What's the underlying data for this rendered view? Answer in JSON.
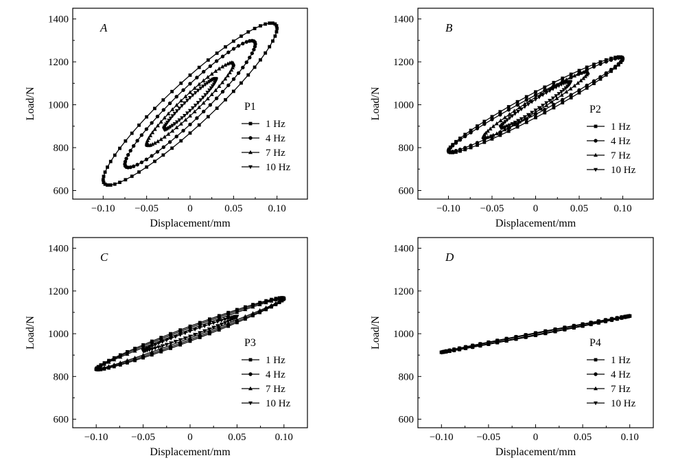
{
  "chart_data": [
    {
      "type": "line",
      "panel_label": "A",
      "specimen": "P1",
      "xlabel": "Displacement/mm",
      "ylabel": "Load/N",
      "xlim": [
        -0.135,
        0.135
      ],
      "ylim": [
        560,
        1450
      ],
      "xticks": [
        -0.1,
        -0.05,
        0,
        0.05,
        0.1
      ],
      "xtick_labels": [
        "−0.10",
        "−0.05",
        "0",
        "0.05",
        "0.10"
      ],
      "yticks": [
        600,
        800,
        1000,
        1200,
        1400
      ],
      "ytick_labels": [
        "600",
        "800",
        "1000",
        "1200",
        "1400"
      ],
      "legend_position": "middle-right",
      "series": [
        {
          "name": "1 Hz",
          "marker": "square",
          "amplitude": 0.1,
          "center_load": 1003,
          "load_amplitude": 353,
          "loop_width": 135
        },
        {
          "name": "4 Hz",
          "marker": "circle",
          "amplitude": 0.075,
          "center_load": 1003,
          "load_amplitude": 280,
          "loop_width": 95
        },
        {
          "name": "7 Hz",
          "marker": "triangle-up",
          "amplitude": 0.05,
          "center_load": 1003,
          "load_amplitude": 185,
          "loop_width": 55
        },
        {
          "name": "10 Hz",
          "marker": "triangle-down",
          "amplitude": 0.03,
          "center_load": 1003,
          "load_amplitude": 115,
          "loop_width": 30
        }
      ]
    },
    {
      "type": "line",
      "panel_label": "B",
      "specimen": "P2",
      "xlabel": "Displacement/mm",
      "ylabel": "Load/N",
      "xlim": [
        -0.135,
        0.135
      ],
      "ylim": [
        560,
        1450
      ],
      "xticks": [
        -0.1,
        -0.05,
        0,
        0.05,
        0.1
      ],
      "xtick_labels": [
        "−0.10",
        "−0.05",
        "0",
        "0.05",
        "0.10"
      ],
      "yticks": [
        600,
        800,
        1000,
        1200,
        1400
      ],
      "ytick_labels": [
        "600",
        "800",
        "1000",
        "1200",
        "1400"
      ],
      "legend_position": "middle-right",
      "series": [
        {
          "name": "1 Hz",
          "marker": "square",
          "amplitude": 0.1,
          "center_load": 1000,
          "load_amplitude": 215,
          "loop_width": 60
        },
        {
          "name": "4 Hz",
          "marker": "circle",
          "amplitude": 0.1,
          "center_load": 1000,
          "load_amplitude": 215,
          "loop_width": 45
        },
        {
          "name": "7 Hz",
          "marker": "triangle-up",
          "amplitude": 0.06,
          "center_load": 1000,
          "load_amplitude": 150,
          "loop_width": 35
        },
        {
          "name": "10 Hz",
          "marker": "triangle-down",
          "amplitude": 0.04,
          "center_load": 1000,
          "load_amplitude": 105,
          "loop_width": 25
        }
      ]
    },
    {
      "type": "line",
      "panel_label": "C",
      "specimen": "P3",
      "xlabel": "Displacement/mm",
      "ylabel": "Load/N",
      "xlim": [
        -0.125,
        0.125
      ],
      "ylim": [
        560,
        1450
      ],
      "xticks": [
        -0.1,
        -0.05,
        0,
        0.05,
        0.1
      ],
      "xtick_labels": [
        "−0.10",
        "−0.05",
        "0",
        "0.05",
        "0.10"
      ],
      "yticks": [
        600,
        800,
        1000,
        1200,
        1400
      ],
      "ytick_labels": [
        "600",
        "800",
        "1000",
        "1200",
        "1400"
      ],
      "legend_position": "lower-right",
      "series": [
        {
          "name": "1 Hz",
          "marker": "square",
          "amplitude": 0.1,
          "center_load": 1000,
          "load_amplitude": 165,
          "loop_width": 35
        },
        {
          "name": "4 Hz",
          "marker": "circle",
          "amplitude": 0.1,
          "center_load": 1000,
          "load_amplitude": 165,
          "loop_width": 28
        },
        {
          "name": "7 Hz",
          "marker": "triangle-up",
          "amplitude": 0.1,
          "center_load": 1000,
          "load_amplitude": 165,
          "loop_width": 20
        },
        {
          "name": "10 Hz",
          "marker": "triangle-down",
          "amplitude": 0.05,
          "center_load": 1000,
          "load_amplitude": 80,
          "loop_width": 12
        }
      ]
    },
    {
      "type": "line",
      "panel_label": "D",
      "specimen": "P4",
      "xlabel": "Displacement/mm",
      "ylabel": "Load/N",
      "xlim": [
        -0.125,
        0.125
      ],
      "ylim": [
        560,
        1450
      ],
      "xticks": [
        -0.1,
        -0.05,
        0,
        0.05,
        0.1
      ],
      "xtick_labels": [
        "−0.10",
        "−0.05",
        "0",
        "0.05",
        "0.10"
      ],
      "yticks": [
        600,
        800,
        1000,
        1200,
        1400
      ],
      "ytick_labels": [
        "600",
        "800",
        "1000",
        "1200",
        "1400"
      ],
      "legend_position": "lower-right",
      "series": [
        {
          "name": "1 Hz",
          "marker": "square",
          "amplitude": 0.1,
          "center_load": 998,
          "load_amplitude": 85,
          "loop_width": 6
        },
        {
          "name": "4 Hz",
          "marker": "circle",
          "amplitude": 0.1,
          "center_load": 998,
          "load_amplitude": 85,
          "loop_width": 5
        },
        {
          "name": "7 Hz",
          "marker": "triangle-up",
          "amplitude": 0.1,
          "center_load": 998,
          "load_amplitude": 85,
          "loop_width": 4
        },
        {
          "name": "10 Hz",
          "marker": "triangle-down",
          "amplitude": 0.1,
          "center_load": 998,
          "load_amplitude": 85,
          "loop_width": 3
        }
      ]
    }
  ]
}
